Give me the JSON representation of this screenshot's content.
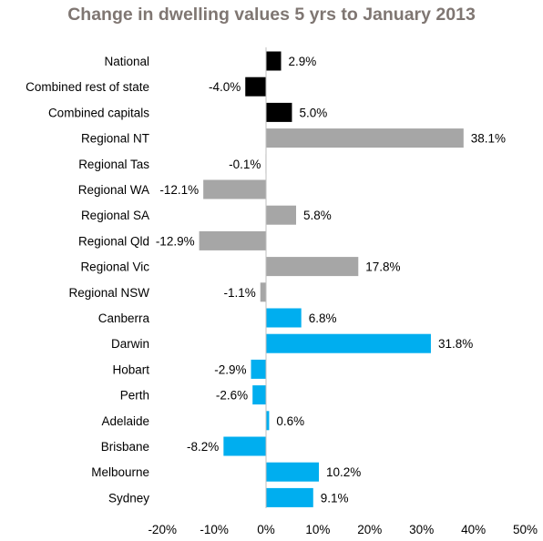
{
  "chart_data": {
    "type": "bar",
    "orientation": "horizontal",
    "title": "Change in dwelling values 5 yrs to January 2013",
    "xlabel": "",
    "ylabel": "",
    "xlim": [
      -20,
      50
    ],
    "tick_values": [
      -20,
      -10,
      0,
      10,
      20,
      30,
      40,
      50
    ],
    "tick_labels": [
      "-20%",
      "-10%",
      "0%",
      "10%",
      "20%",
      "30%",
      "40%",
      "50%"
    ],
    "grid": false,
    "legend": "none",
    "categories": [
      "National",
      "Combined rest of state",
      "Combined capitals",
      "Regional NT",
      "Regional Tas",
      "Regional WA",
      "Regional SA",
      "Regional Qld",
      "Regional Vic",
      "Regional NSW",
      "Canberra",
      "Darwin",
      "Hobart",
      "Perth",
      "Adelaide",
      "Brisbane",
      "Melbourne",
      "Sydney"
    ],
    "values": [
      2.9,
      -4.0,
      5.0,
      38.1,
      -0.1,
      -12.1,
      5.8,
      -12.9,
      17.8,
      -1.1,
      6.8,
      31.8,
      -2.9,
      -2.6,
      0.6,
      -8.2,
      10.2,
      9.1
    ],
    "data_labels": [
      "2.9%",
      "-4.0%",
      "5.0%",
      "38.1%",
      "-0.1%",
      "-12.1%",
      "5.8%",
      "-12.9%",
      "17.8%",
      "-1.1%",
      "6.8%",
      "31.8%",
      "-2.9%",
      "-2.6%",
      "0.6%",
      "-8.2%",
      "10.2%",
      "9.1%"
    ],
    "colors": [
      "#000000",
      "#000000",
      "#000000",
      "#a6a6a6",
      "#a6a6a6",
      "#a6a6a6",
      "#a6a6a6",
      "#a6a6a6",
      "#a6a6a6",
      "#a6a6a6",
      "#00aeef",
      "#00aeef",
      "#00aeef",
      "#00aeef",
      "#00aeef",
      "#00aeef",
      "#00aeef",
      "#00aeef"
    ],
    "axis_line_color": "#bfbfbf",
    "title_color": "#7f7672"
  }
}
